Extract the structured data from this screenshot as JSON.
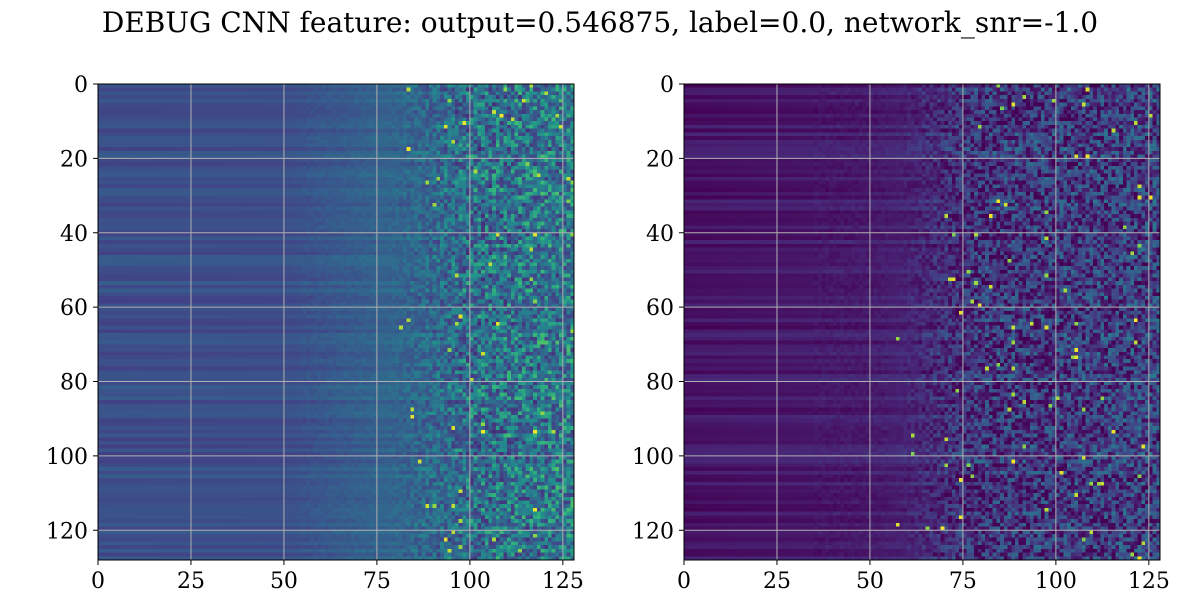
{
  "figure": {
    "title": "DEBUG CNN feature: output=0.546875, label=0.0, network_snr=-1.0"
  },
  "chart_data": [
    {
      "type": "heatmap",
      "colormap": "viridis",
      "shape": [
        128,
        128
      ],
      "xlim": [
        0,
        128
      ],
      "ylim": [
        128,
        0
      ],
      "xticks": [
        0,
        25,
        50,
        75,
        100,
        125
      ],
      "yticks": [
        0,
        20,
        40,
        60,
        80,
        100,
        120
      ],
      "xtick_labels": [
        "0",
        "25",
        "50",
        "75",
        "100",
        "125"
      ],
      "ytick_labels": [
        "0",
        "20",
        "40",
        "60",
        "80",
        "100",
        "120"
      ],
      "grid": true,
      "grid_color": "#b0b0b0",
      "column_level_profile": {
        "columns": [
          0,
          50,
          75,
          127
        ],
        "values": [
          0.3,
          0.3,
          0.4,
          0.5
        ]
      },
      "noise_onset_column": 75,
      "noise_amplitude": 0.28,
      "vmin": 0,
      "vmax": 1
    },
    {
      "type": "heatmap",
      "colormap": "viridis",
      "shape": [
        128,
        128
      ],
      "xlim": [
        0,
        128
      ],
      "ylim": [
        128,
        0
      ],
      "xticks": [
        0,
        25,
        50,
        75,
        100,
        125
      ],
      "yticks": [
        0,
        20,
        40,
        60,
        80,
        100,
        120
      ],
      "xtick_labels": [
        "0",
        "25",
        "50",
        "75",
        "100",
        "125"
      ],
      "ytick_labels": [
        "0",
        "20",
        "40",
        "60",
        "80",
        "100",
        "120"
      ],
      "grid": true,
      "grid_color": "#b0b0b0",
      "column_level_profile": {
        "columns": [
          0,
          50,
          75,
          127
        ],
        "values": [
          0.07,
          0.1,
          0.18,
          0.25
        ]
      },
      "noise_onset_column": 55,
      "noise_amplitude": 0.25,
      "vmin": 0,
      "vmax": 1
    }
  ]
}
